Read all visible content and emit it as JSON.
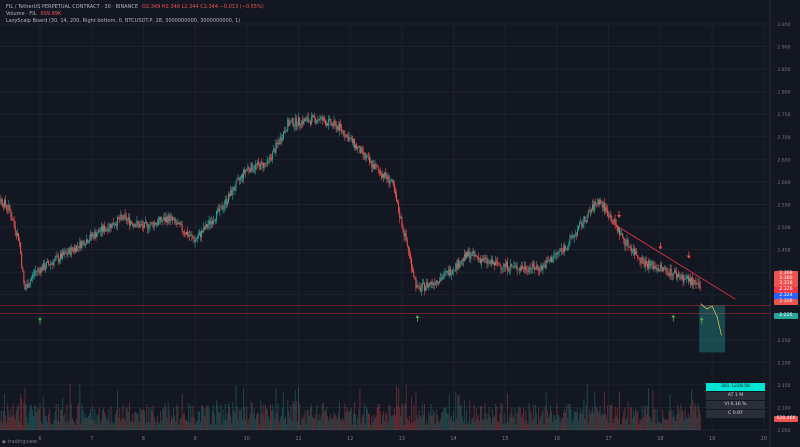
{
  "header": {
    "line1": "FIL / TetherUS PERPETUAL CONTRACT · 30 · BINANCE",
    "line1_ohlc": "O2.349  H2.349  L2.344  C2.344  −0.013 (−0.55%)",
    "line2": "Volume · FIL",
    "line2_val": "609.89K",
    "line3": "LazyScalp Board (30, 14, 200, Right bottom, 0, BTCUSDT.P, 28, 3000000000, 3000000000, 1)"
  },
  "chart_data": {
    "type": "candlestick",
    "x_ticks": [
      "6",
      "7",
      "8",
      "9",
      "10",
      "11",
      "12",
      "13",
      "14",
      "15",
      "16",
      "17",
      "18",
      "19",
      "20"
    ],
    "y_ticks": [
      "2.050",
      "2.100",
      "2.150",
      "2.200",
      "2.250",
      "2.300",
      "2.350",
      "2.400",
      "2.450",
      "2.500",
      "2.550",
      "2.600",
      "2.650",
      "2.700",
      "2.750",
      "2.800",
      "2.850",
      "2.900",
      "2.950"
    ],
    "ylim": [
      2.05,
      2.95
    ],
    "price_path": [
      [
        5.0,
        2.59
      ],
      [
        5.4,
        2.54
      ],
      [
        5.6,
        2.47
      ],
      [
        5.7,
        2.36
      ],
      [
        5.9,
        2.4
      ],
      [
        6.5,
        2.44
      ],
      [
        7.0,
        2.48
      ],
      [
        7.6,
        2.52
      ],
      [
        8.0,
        2.5
      ],
      [
        8.5,
        2.52
      ],
      [
        9.0,
        2.47
      ],
      [
        9.5,
        2.54
      ],
      [
        10.0,
        2.63
      ],
      [
        10.4,
        2.64
      ],
      [
        10.8,
        2.73
      ],
      [
        11.4,
        2.74
      ],
      [
        11.8,
        2.72
      ],
      [
        12.4,
        2.64
      ],
      [
        12.8,
        2.6
      ],
      [
        13.1,
        2.46
      ],
      [
        13.3,
        2.36
      ],
      [
        13.8,
        2.39
      ],
      [
        14.3,
        2.44
      ],
      [
        14.7,
        2.42
      ],
      [
        15.2,
        2.41
      ],
      [
        15.7,
        2.41
      ],
      [
        16.2,
        2.46
      ],
      [
        16.8,
        2.56
      ],
      [
        17.0,
        2.53
      ],
      [
        17.3,
        2.47
      ],
      [
        17.7,
        2.42
      ],
      [
        18.2,
        2.4
      ],
      [
        18.6,
        2.38
      ],
      [
        18.8,
        2.36
      ]
    ],
    "price_labels": [
      {
        "text": "2.369",
        "color": "#ef5350"
      },
      {
        "text": "2.360",
        "color": "#ef5350"
      },
      {
        "text": "2.318",
        "color": "#ef5350"
      },
      {
        "text": "2.326",
        "color": "#f23645"
      },
      {
        "text": "2.324",
        "color": "#2962ff"
      },
      {
        "text": "2.308",
        "color": "#ef5350"
      },
      {
        "text": "2.225",
        "color": "#26a69a"
      },
      {
        "text": "628.46K",
        "color": "#ef5350"
      }
    ],
    "up_color": "#26a69a",
    "down_color": "#ef5350"
  },
  "board": [
    "301 1228.5K",
    "AT 1 M",
    "VI 0.16 %",
    "C 0.97"
  ],
  "branding": "tradingview"
}
